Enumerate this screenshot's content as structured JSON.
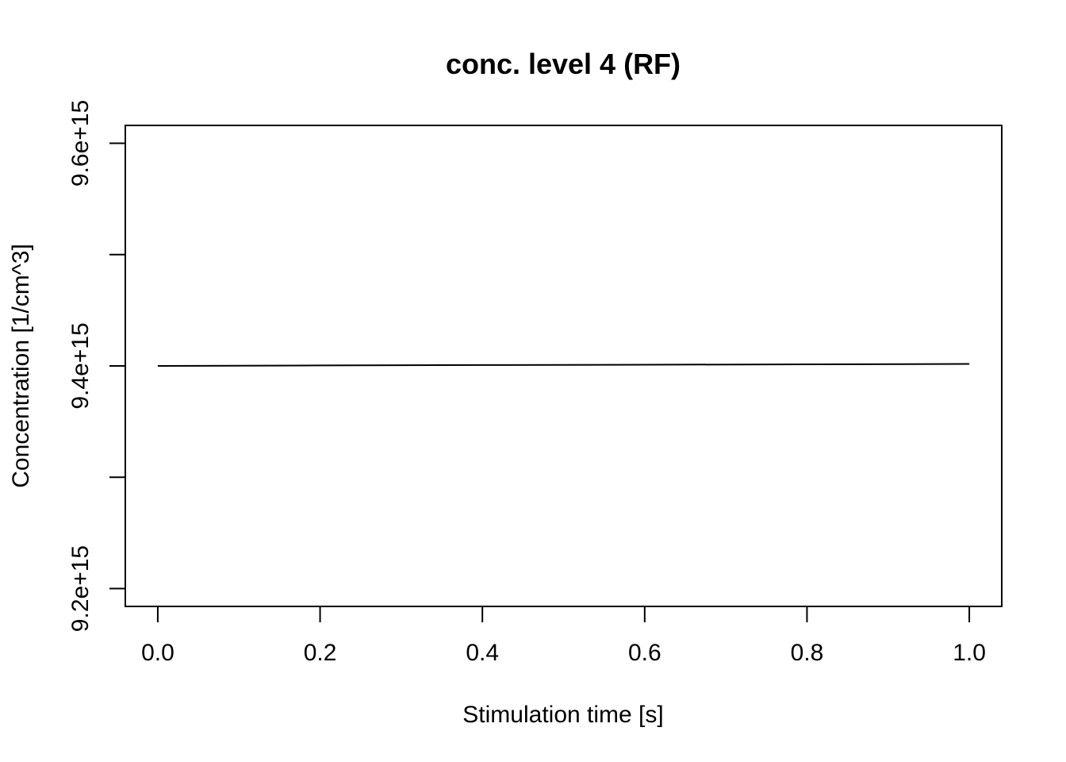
{
  "chart_data": {
    "type": "line",
    "title": "conc. level 4 (RF)",
    "xlabel": "Stimulation time [s]",
    "ylabel": "Concentration [1/cm^3]",
    "xlim": [
      -0.04,
      1.04
    ],
    "ylim": [
      9184000000000000.0,
      9616000000000000.0
    ],
    "x_ticks": [
      0.0,
      0.2,
      0.4,
      0.6,
      0.8,
      1.0
    ],
    "x_tick_labels": [
      "0.0",
      "0.2",
      "0.4",
      "0.6",
      "0.8",
      "1.0"
    ],
    "y_ticks": [
      9200000000000000.0,
      9300000000000000.0,
      9400000000000000.0,
      9500000000000000.0,
      9600000000000000.0
    ],
    "y_tick_labels": [
      "9.2e+15",
      "",
      "9.4e+15",
      "",
      "9.6e+15"
    ],
    "grid": false,
    "legend": "none",
    "series": [
      {
        "x": [
          0.0,
          0.2,
          0.4,
          0.6,
          0.8,
          1.0
        ],
        "y": [
          9400000000000000.0,
          9400400000000000.0,
          9400800000000000.0,
          9401100000000000.0,
          9401400000000000.0,
          9401800000000000.0
        ]
      }
    ]
  }
}
